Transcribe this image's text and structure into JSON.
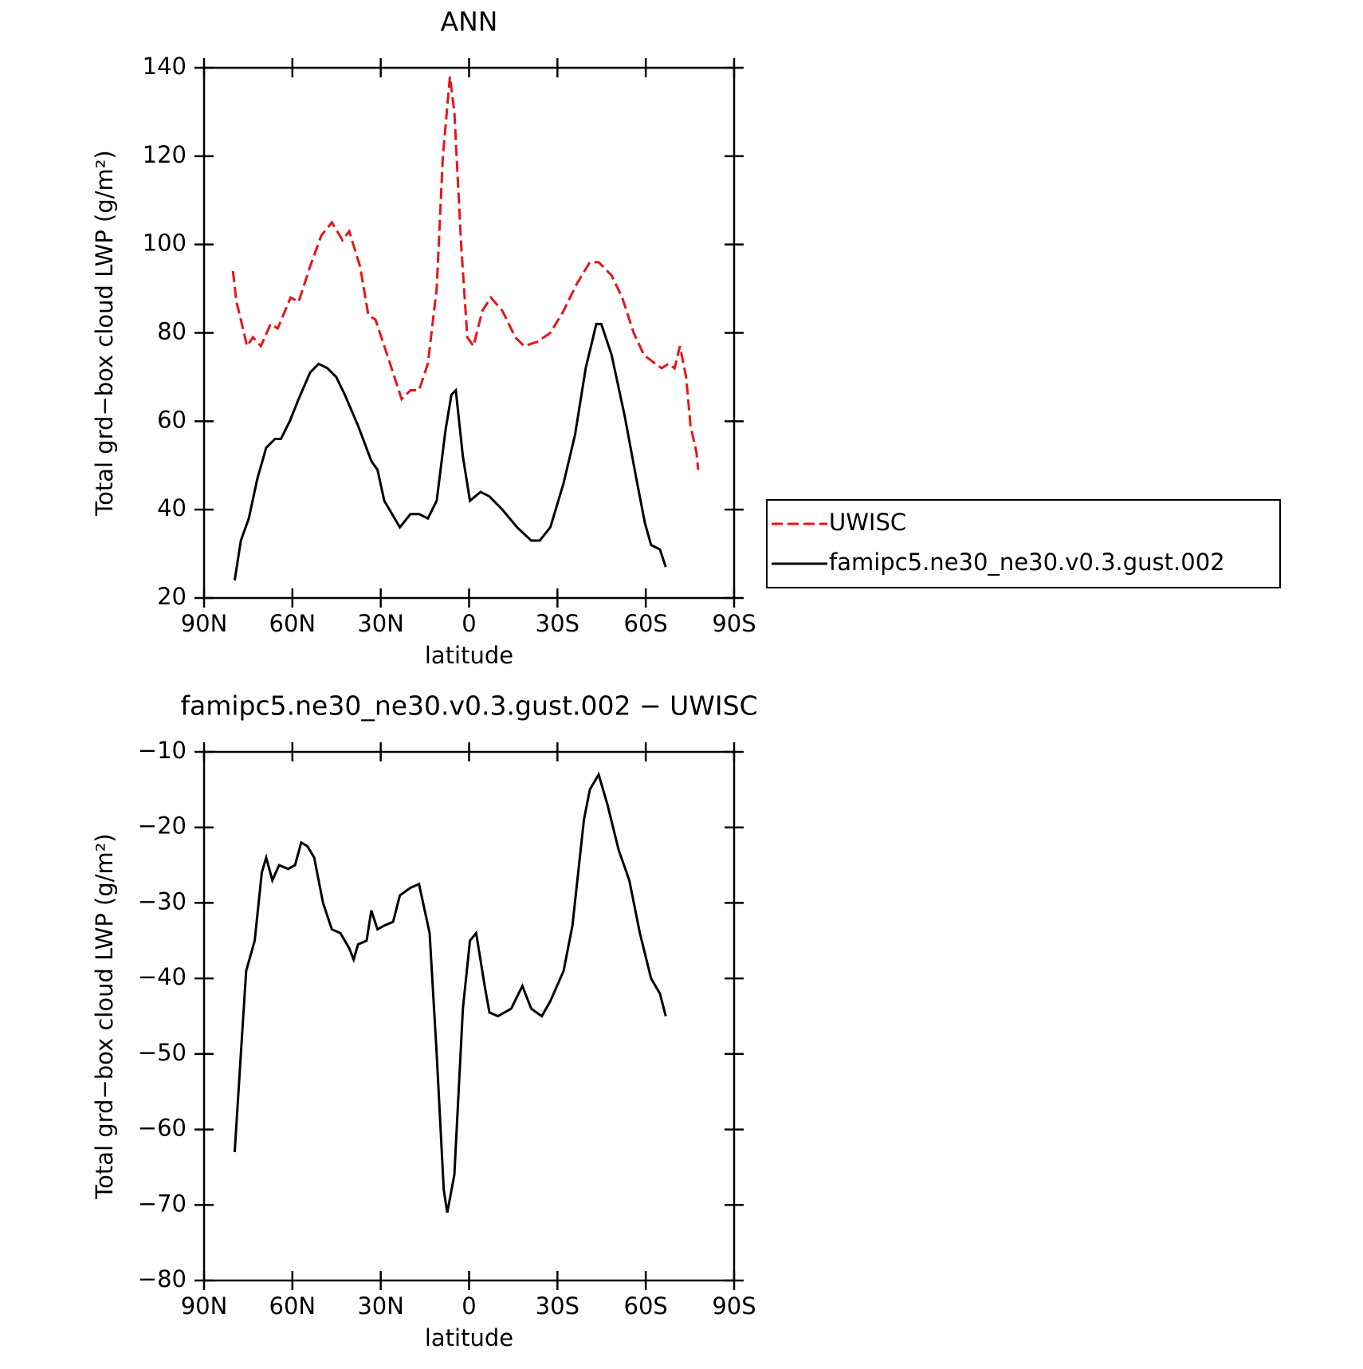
{
  "chart_data": [
    {
      "type": "line",
      "title": "ANN",
      "xlabel": "latitude",
      "ylabel": "Total grd−box cloud LWP (g/m²)",
      "xlim": [
        90,
        -90
      ],
      "xticks": [
        {
          "value": 90,
          "label": "90N"
        },
        {
          "value": 60,
          "label": "60N"
        },
        {
          "value": 30,
          "label": "30N"
        },
        0,
        {
          "value": -30,
          "label": "30S"
        },
        {
          "value": -60,
          "label": "60S"
        },
        {
          "value": -90,
          "label": "90S"
        }
      ],
      "ylim": [
        20,
        140
      ],
      "yticks": [
        20,
        40,
        60,
        80,
        100,
        120,
        140
      ],
      "series": [
        {
          "name": "UWISC",
          "color": "#e8141c",
          "dash": true,
          "x": [
            80.2,
            79,
            77.5,
            75.4,
            73.4,
            70.7,
            67.4,
            65,
            60.6,
            57.9,
            54,
            50.2,
            46.6,
            43,
            40.7,
            37,
            34.2,
            31.8,
            27.3,
            22.9,
            19.9,
            17,
            14,
            11,
            8.9,
            6.5,
            5,
            2.7,
            0.6,
            -1.5,
            -4.5,
            -7.4,
            -11.3,
            -15.7,
            -18.7,
            -23.2,
            -27.6,
            -32.1,
            -36.5,
            -41,
            -44,
            -48.4,
            -52,
            -55.9,
            -59.4,
            -63.3,
            -65.4,
            -67.7,
            -69.8,
            -71.6,
            -73.7,
            -75.2,
            -77.2,
            -77.8
          ],
          "values": [
            94,
            87,
            83,
            77,
            79,
            77,
            82,
            81,
            88,
            87,
            95,
            102,
            105,
            101,
            103,
            95,
            84,
            83,
            74,
            65,
            67,
            67,
            73,
            90,
            120,
            138,
            130,
            100,
            79,
            77,
            85,
            88,
            85,
            79,
            77,
            78,
            80,
            85,
            91,
            96,
            96,
            93,
            88,
            80,
            75,
            73,
            72,
            73,
            72,
            77,
            70,
            59,
            53,
            49
          ]
        },
        {
          "name": "famipc5.ne30_ne30.v0.3.gust.002",
          "color": "#000000",
          "dash": false,
          "x": [
            79.6,
            77.5,
            74.8,
            71.9,
            68.9,
            65.9,
            63.9,
            60.9,
            57.9,
            54,
            51.1,
            48.1,
            45.1,
            42.2,
            37.7,
            33.2,
            31.1,
            28.8,
            23.5,
            19.9,
            17,
            14,
            11,
            8,
            6,
            4.5,
            2.1,
            -0.3,
            -3.9,
            -6.9,
            -11.3,
            -16.3,
            -21.1,
            -24,
            -27.6,
            -32.1,
            -36,
            -39.6,
            -43.2,
            -44.9,
            -48.4,
            -52.9,
            -56.8,
            -59.7,
            -61.8,
            -64.8,
            -66.8
          ],
          "values": [
            24,
            33,
            38,
            47,
            54,
            56,
            56,
            60,
            65,
            71,
            73,
            72,
            70,
            66,
            59,
            51,
            49,
            42,
            36,
            39,
            39,
            38,
            42,
            58,
            66,
            67,
            52,
            42,
            44,
            43,
            40,
            36,
            33,
            33,
            36,
            46,
            57,
            72,
            82,
            82,
            75,
            61,
            47,
            37,
            32,
            31,
            27
          ]
        }
      ],
      "legend": "right"
    },
    {
      "type": "line",
      "title": "famipc5.ne30_ne30.v0.3.gust.002 − UWISC",
      "xlabel": "latitude",
      "ylabel": "Total grd−box cloud LWP (g/m²)",
      "xlim": [
        90,
        -90
      ],
      "xticks": [
        {
          "value": 90,
          "label": "90N"
        },
        {
          "value": 60,
          "label": "60N"
        },
        {
          "value": 30,
          "label": "30N"
        },
        0,
        {
          "value": -30,
          "label": "30S"
        },
        {
          "value": -60,
          "label": "60S"
        },
        {
          "value": -90,
          "label": "90S"
        }
      ],
      "ylim": [
        -80,
        -10
      ],
      "yticks": [
        {
          "value": -80,
          "label": "−80"
        },
        {
          "value": -70,
          "label": "−70"
        },
        {
          "value": -60,
          "label": "−60"
        },
        {
          "value": -50,
          "label": "−50"
        },
        {
          "value": -40,
          "label": "−40"
        },
        {
          "value": -30,
          "label": "−30"
        },
        {
          "value": -20,
          "label": "−20"
        },
        {
          "value": -10,
          "label": "−10"
        }
      ],
      "series": [
        {
          "color": "#000000",
          "dash": false,
          "x": [
            79.6,
            77.5,
            75.7,
            72.8,
            70.4,
            68.9,
            66.8,
            64.5,
            61.5,
            59.1,
            57,
            54.9,
            52.6,
            49.6,
            46.6,
            43.7,
            40.7,
            39.2,
            37.7,
            34.8,
            33.2,
            31.1,
            28.8,
            25.8,
            23.5,
            19.9,
            17,
            13.4,
            11,
            8.6,
            7.4,
            5,
            2.1,
            -0.3,
            -2.4,
            -5.3,
            -6.9,
            -9.8,
            -14.3,
            -18.1,
            -21.1,
            -24.7,
            -27.6,
            -32.1,
            -35.1,
            -39,
            -41,
            -44,
            -47,
            -50.8,
            -54.4,
            -58,
            -61.8,
            -64.8,
            -66.8
          ],
          "values": [
            -63,
            -50,
            -39,
            -35,
            -26,
            -24,
            -27,
            -25,
            -25.5,
            -25,
            -22,
            -22.5,
            -24,
            -30,
            -33.5,
            -34,
            -36,
            -37.5,
            -35.5,
            -35,
            -31,
            -33.5,
            -33,
            -32.5,
            -29,
            -28,
            -27.5,
            -34,
            -50,
            -68,
            -71,
            -66,
            -44,
            -35,
            -34,
            -41,
            -44.5,
            -45,
            -44,
            -41,
            -44,
            -45,
            -43,
            -39,
            -33,
            -19,
            -15,
            -13,
            -17,
            -23,
            -27,
            -34,
            -40,
            -42,
            -45
          ]
        }
      ]
    }
  ]
}
